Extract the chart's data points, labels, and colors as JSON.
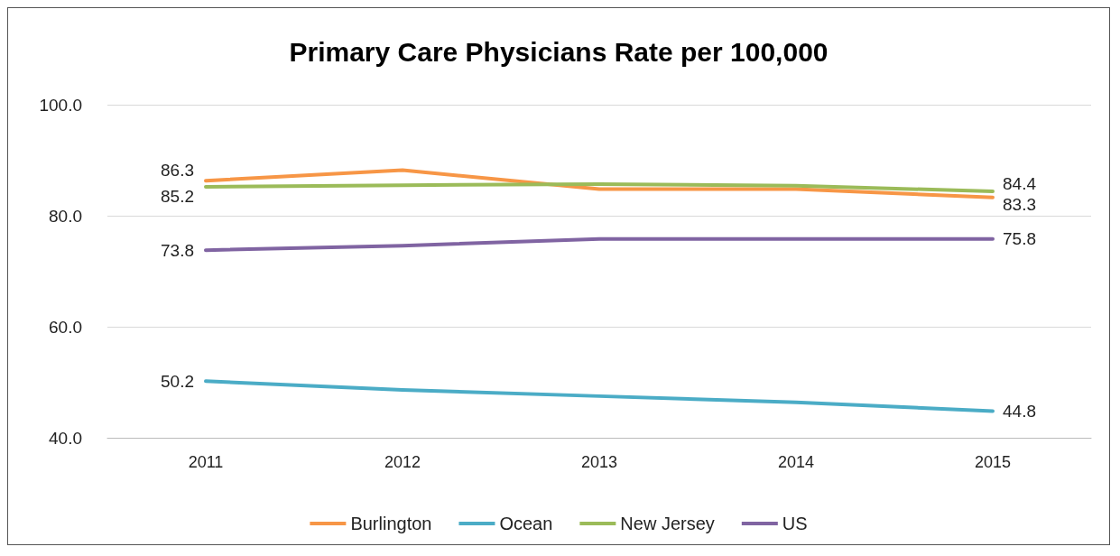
{
  "chart_data": {
    "type": "line",
    "title": "Primary Care Physicians Rate per 100,000",
    "categories": [
      "2011",
      "2012",
      "2013",
      "2014",
      "2015"
    ],
    "series": [
      {
        "name": "Burlington",
        "color": "#f79646",
        "values": [
          86.3,
          88.2,
          84.8,
          84.8,
          83.3
        ],
        "value_labels": [
          "86.3",
          null,
          null,
          null,
          "83.3"
        ]
      },
      {
        "name": "Ocean",
        "color": "#4bacc6",
        "values": [
          50.2,
          48.6,
          47.5,
          46.4,
          44.8
        ],
        "value_labels": [
          "50.2",
          null,
          null,
          null,
          "44.8"
        ]
      },
      {
        "name": "New Jersey",
        "color": "#9bbb59",
        "values": [
          85.2,
          85.5,
          85.7,
          85.4,
          84.4
        ],
        "value_labels": [
          "85.2",
          null,
          null,
          null,
          "84.4"
        ]
      },
      {
        "name": "US",
        "color": "#8064a2",
        "values": [
          73.8,
          74.6,
          75.8,
          75.8,
          75.8
        ],
        "value_labels": [
          "73.8",
          null,
          null,
          null,
          "75.8"
        ]
      }
    ],
    "ylim": [
      40,
      100
    ],
    "yticks": [
      {
        "value": 40,
        "label": "40.0"
      },
      {
        "value": 60,
        "label": "60.0"
      },
      {
        "value": 80,
        "label": "80.0"
      },
      {
        "value": 100,
        "label": "100.0"
      }
    ],
    "grid": "y",
    "legend": "bottom",
    "marker": "none",
    "line_style": "solid"
  }
}
